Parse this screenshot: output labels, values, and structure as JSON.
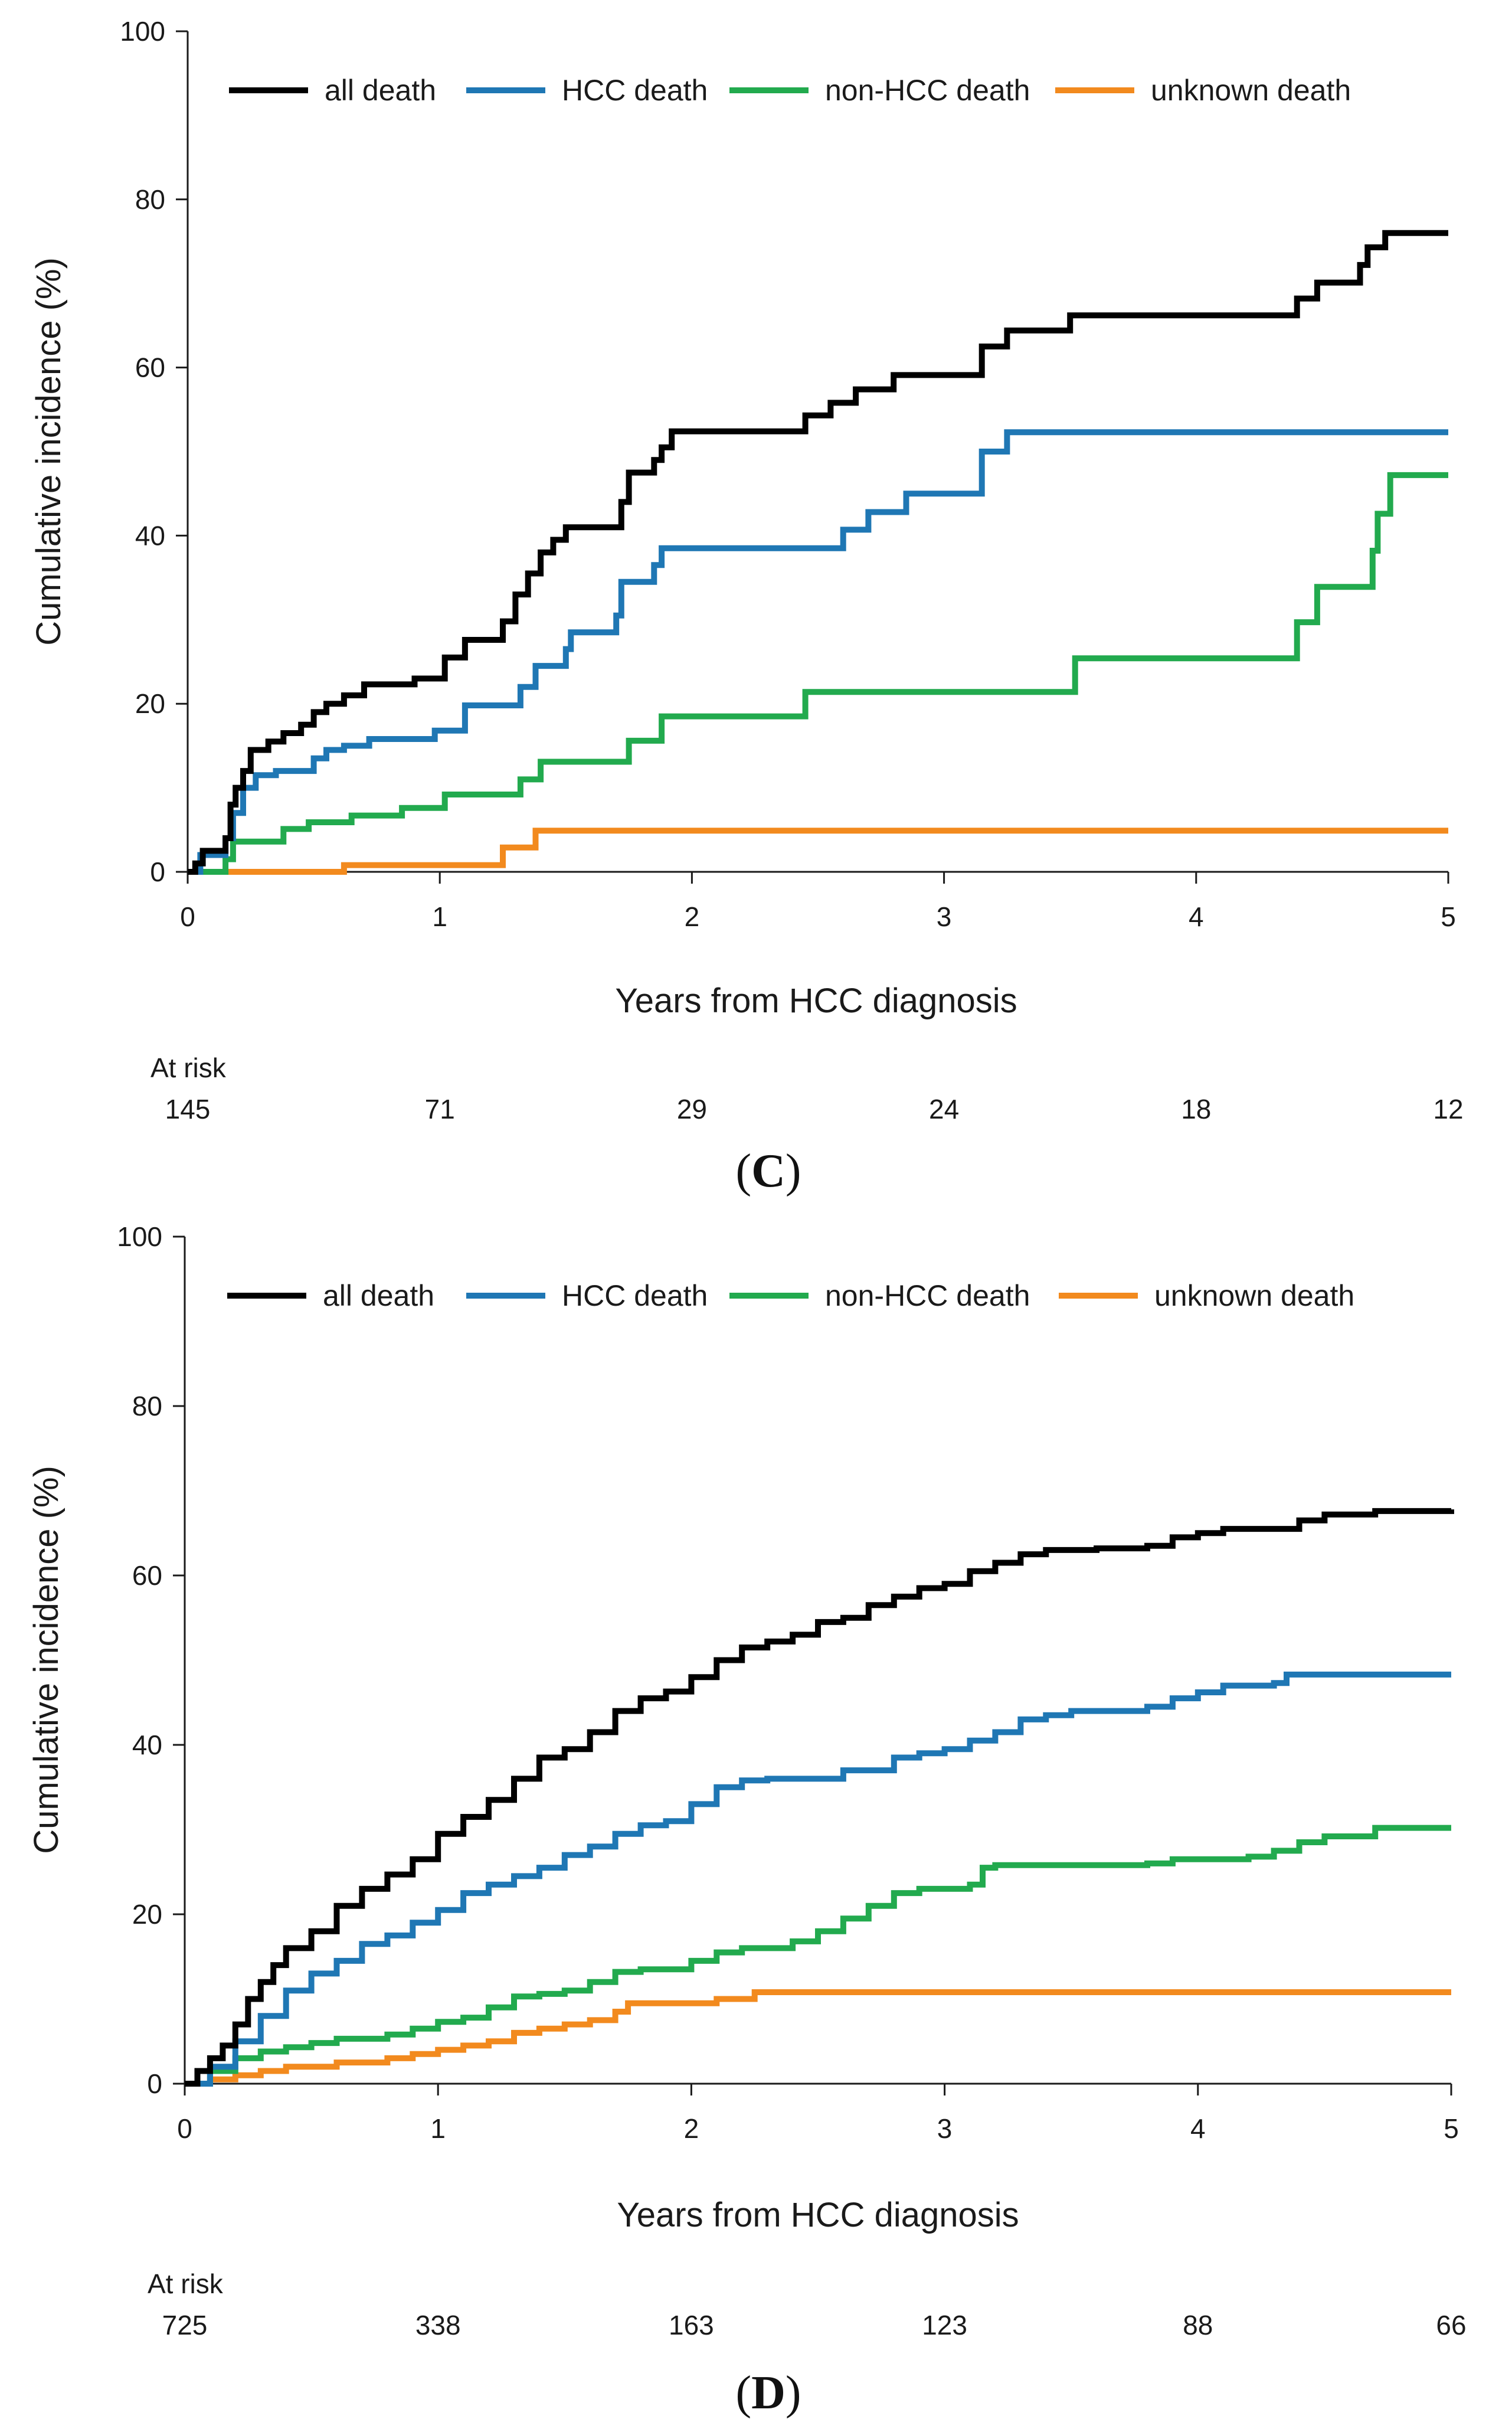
{
  "chart_data": [
    {
      "panel": "C",
      "type": "line",
      "step": true,
      "xlabel": "Years from HCC diagnosis",
      "ylabel": "Cumulative incidence (%)",
      "xlim": [
        0,
        5
      ],
      "ylim": [
        0,
        100
      ],
      "xticks": [
        "0",
        "1",
        "2",
        "3",
        "4",
        "5"
      ],
      "yticks": [
        "0",
        "20",
        "40",
        "60",
        "80",
        "100"
      ],
      "legend_position": "top",
      "at_risk_label": "At risk",
      "at_risk": [
        "145",
        "71",
        "29",
        "24",
        "18",
        "12"
      ],
      "series": [
        {
          "name": "all death",
          "color": "#000000",
          "points": [
            [
              0,
              0
            ],
            [
              0.03,
              1
            ],
            [
              0.06,
              2.5
            ],
            [
              0.15,
              4
            ],
            [
              0.17,
              8
            ],
            [
              0.19,
              10
            ],
            [
              0.22,
              12
            ],
            [
              0.25,
              14.5
            ],
            [
              0.32,
              15.5
            ],
            [
              0.38,
              16.5
            ],
            [
              0.45,
              17.5
            ],
            [
              0.5,
              19
            ],
            [
              0.55,
              20
            ],
            [
              0.62,
              21
            ],
            [
              0.7,
              22.3
            ],
            [
              0.9,
              23
            ],
            [
              1.02,
              25.5
            ],
            [
              1.1,
              27.6
            ],
            [
              1.25,
              29.8
            ],
            [
              1.3,
              33
            ],
            [
              1.35,
              35.5
            ],
            [
              1.4,
              38
            ],
            [
              1.45,
              39.5
            ],
            [
              1.5,
              41
            ],
            [
              1.72,
              44
            ],
            [
              1.75,
              47.5
            ],
            [
              1.85,
              49
            ],
            [
              1.88,
              50.5
            ],
            [
              1.92,
              52.4
            ],
            [
              2.45,
              54.3
            ],
            [
              2.55,
              55.8
            ],
            [
              2.65,
              57.4
            ],
            [
              2.8,
              59.1
            ],
            [
              3.15,
              62.5
            ],
            [
              3.25,
              64.4
            ],
            [
              3.5,
              66.2
            ],
            [
              4.4,
              68.2
            ],
            [
              4.48,
              70.1
            ],
            [
              4.65,
              72.2
            ],
            [
              4.68,
              74.3
            ],
            [
              4.75,
              76
            ],
            [
              5,
              76
            ]
          ]
        },
        {
          "name": "HCC death",
          "color": "#1F77B4",
          "points": [
            [
              0,
              0
            ],
            [
              0.05,
              2
            ],
            [
              0.15,
              4
            ],
            [
              0.18,
              7
            ],
            [
              0.22,
              10
            ],
            [
              0.27,
              11.5
            ],
            [
              0.35,
              12
            ],
            [
              0.5,
              13.5
            ],
            [
              0.55,
              14.5
            ],
            [
              0.62,
              15
            ],
            [
              0.72,
              15.8
            ],
            [
              0.98,
              16.8
            ],
            [
              1.1,
              19.8
            ],
            [
              1.32,
              22
            ],
            [
              1.38,
              24.5
            ],
            [
              1.5,
              26.5
            ],
            [
              1.52,
              28.5
            ],
            [
              1.7,
              30.5
            ],
            [
              1.72,
              34.5
            ],
            [
              1.85,
              36.5
            ],
            [
              1.88,
              38.5
            ],
            [
              2.6,
              40.7
            ],
            [
              2.7,
              42.8
            ],
            [
              2.85,
              45
            ],
            [
              3.15,
              50
            ],
            [
              3.25,
              52.3
            ],
            [
              5,
              52.3
            ]
          ]
        },
        {
          "name": "non-HCC death",
          "color": "#22AA4E",
          "points": [
            [
              0,
              0
            ],
            [
              0.15,
              1.5
            ],
            [
              0.18,
              3.6
            ],
            [
              0.38,
              5.1
            ],
            [
              0.48,
              5.9
            ],
            [
              0.65,
              6.7
            ],
            [
              0.85,
              7.6
            ],
            [
              1.02,
              9.2
            ],
            [
              1.32,
              11
            ],
            [
              1.4,
              13.1
            ],
            [
              1.75,
              15.6
            ],
            [
              1.88,
              18.5
            ],
            [
              2.45,
              21.4
            ],
            [
              3.52,
              25.4
            ],
            [
              4.4,
              29.7
            ],
            [
              4.48,
              33.9
            ],
            [
              4.7,
              38.2
            ],
            [
              4.72,
              42.6
            ],
            [
              4.77,
              47.2
            ],
            [
              5,
              47.2
            ]
          ]
        },
        {
          "name": "unknown death",
          "color": "#F28A1E",
          "points": [
            [
              0,
              0
            ],
            [
              0.62,
              0.8
            ],
            [
              1.25,
              2.9
            ],
            [
              1.38,
              4.9
            ],
            [
              5,
              4.9
            ]
          ]
        }
      ]
    },
    {
      "panel": "D",
      "type": "line",
      "step": true,
      "xlabel": "Years from HCC diagnosis",
      "ylabel": "Cumulative incidence (%)",
      "xlim": [
        0,
        5
      ],
      "ylim": [
        0,
        100
      ],
      "xticks": [
        "0",
        "1",
        "2",
        "3",
        "4",
        "5"
      ],
      "yticks": [
        "0",
        "20",
        "40",
        "60",
        "80",
        "100"
      ],
      "legend_position": "top",
      "at_risk_label": "At risk",
      "at_risk": [
        "725",
        "338",
        "163",
        "123",
        "88",
        "66"
      ],
      "series": [
        {
          "name": "all death",
          "color": "#000000",
          "points": [
            [
              0,
              0
            ],
            [
              0.05,
              1.5
            ],
            [
              0.1,
              3
            ],
            [
              0.15,
              4.5
            ],
            [
              0.2,
              7
            ],
            [
              0.25,
              10
            ],
            [
              0.3,
              12
            ],
            [
              0.35,
              14
            ],
            [
              0.4,
              16
            ],
            [
              0.5,
              18
            ],
            [
              0.6,
              21
            ],
            [
              0.7,
              23
            ],
            [
              0.8,
              24.7
            ],
            [
              0.9,
              26.5
            ],
            [
              1.0,
              29.5
            ],
            [
              1.1,
              31.5
            ],
            [
              1.2,
              33.5
            ],
            [
              1.3,
              36
            ],
            [
              1.4,
              38.5
            ],
            [
              1.5,
              39.5
            ],
            [
              1.6,
              41.5
            ],
            [
              1.7,
              44
            ],
            [
              1.8,
              45.5
            ],
            [
              1.9,
              46.3
            ],
            [
              2.0,
              48
            ],
            [
              2.1,
              50
            ],
            [
              2.2,
              51.5
            ],
            [
              2.3,
              52.2
            ],
            [
              2.4,
              53
            ],
            [
              2.5,
              54.5
            ],
            [
              2.6,
              55
            ],
            [
              2.7,
              56.5
            ],
            [
              2.8,
              57.5
            ],
            [
              2.9,
              58.5
            ],
            [
              3.0,
              59
            ],
            [
              3.1,
              60.5
            ],
            [
              3.2,
              61.5
            ],
            [
              3.3,
              62.5
            ],
            [
              3.4,
              63
            ],
            [
              3.6,
              63.2
            ],
            [
              3.8,
              63.5
            ],
            [
              3.9,
              64.5
            ],
            [
              4.0,
              65
            ],
            [
              4.1,
              65.5
            ],
            [
              4.3,
              65.5
            ],
            [
              4.4,
              66.5
            ],
            [
              4.5,
              67.2
            ],
            [
              4.7,
              67.6
            ],
            [
              5,
              67.8
            ]
          ]
        },
        {
          "name": "HCC death",
          "color": "#1F77B4",
          "points": [
            [
              0,
              0
            ],
            [
              0.1,
              2
            ],
            [
              0.2,
              5
            ],
            [
              0.3,
              8
            ],
            [
              0.4,
              11
            ],
            [
              0.5,
              13
            ],
            [
              0.6,
              14.5
            ],
            [
              0.7,
              16.5
            ],
            [
              0.8,
              17.5
            ],
            [
              0.9,
              19
            ],
            [
              1.0,
              20.5
            ],
            [
              1.1,
              22.5
            ],
            [
              1.2,
              23.5
            ],
            [
              1.3,
              24.5
            ],
            [
              1.4,
              25.5
            ],
            [
              1.5,
              27
            ],
            [
              1.6,
              28
            ],
            [
              1.7,
              29.5
            ],
            [
              1.8,
              30.5
            ],
            [
              1.9,
              31
            ],
            [
              2.0,
              33
            ],
            [
              2.1,
              35
            ],
            [
              2.2,
              35.8
            ],
            [
              2.3,
              36
            ],
            [
              2.6,
              37
            ],
            [
              2.8,
              38.5
            ],
            [
              2.9,
              39
            ],
            [
              3.0,
              39.5
            ],
            [
              3.1,
              40.5
            ],
            [
              3.2,
              41.5
            ],
            [
              3.3,
              43
            ],
            [
              3.4,
              43.5
            ],
            [
              3.5,
              44
            ],
            [
              3.8,
              44.5
            ],
            [
              3.9,
              45.5
            ],
            [
              4.0,
              46.2
            ],
            [
              4.1,
              47
            ],
            [
              4.3,
              47.3
            ],
            [
              4.35,
              48.3
            ],
            [
              5,
              48.3
            ]
          ]
        },
        {
          "name": "non-HCC death",
          "color": "#22AA4E",
          "points": [
            [
              0,
              0
            ],
            [
              0.1,
              1.5
            ],
            [
              0.2,
              3
            ],
            [
              0.3,
              3.8
            ],
            [
              0.4,
              4.3
            ],
            [
              0.5,
              4.8
            ],
            [
              0.6,
              5.3
            ],
            [
              0.8,
              5.8
            ],
            [
              0.9,
              6.5
            ],
            [
              1.0,
              7.3
            ],
            [
              1.1,
              7.8
            ],
            [
              1.2,
              9
            ],
            [
              1.3,
              10.3
            ],
            [
              1.4,
              10.6
            ],
            [
              1.5,
              11
            ],
            [
              1.6,
              12
            ],
            [
              1.7,
              13.2
            ],
            [
              1.8,
              13.5
            ],
            [
              2.0,
              14.5
            ],
            [
              2.1,
              15.5
            ],
            [
              2.2,
              16
            ],
            [
              2.4,
              16.8
            ],
            [
              2.5,
              18
            ],
            [
              2.6,
              19.5
            ],
            [
              2.7,
              21
            ],
            [
              2.8,
              22.5
            ],
            [
              2.9,
              23
            ],
            [
              3.1,
              23.5
            ],
            [
              3.15,
              25.5
            ],
            [
              3.2,
              25.8
            ],
            [
              3.8,
              26
            ],
            [
              3.9,
              26.5
            ],
            [
              4.2,
              26.8
            ],
            [
              4.3,
              27.5
            ],
            [
              4.4,
              28.5
            ],
            [
              4.5,
              29.2
            ],
            [
              4.7,
              30.2
            ],
            [
              5,
              30.2
            ]
          ]
        },
        {
          "name": "unknown death",
          "color": "#F28A1E",
          "points": [
            [
              0,
              0
            ],
            [
              0.1,
              0.5
            ],
            [
              0.2,
              1
            ],
            [
              0.3,
              1.5
            ],
            [
              0.4,
              2
            ],
            [
              0.6,
              2.5
            ],
            [
              0.8,
              3
            ],
            [
              0.9,
              3.5
            ],
            [
              1.0,
              4
            ],
            [
              1.1,
              4.5
            ],
            [
              1.2,
              5
            ],
            [
              1.3,
              6
            ],
            [
              1.4,
              6.5
            ],
            [
              1.5,
              7
            ],
            [
              1.6,
              7.5
            ],
            [
              1.7,
              8.5
            ],
            [
              1.75,
              9.5
            ],
            [
              1.9,
              9.5
            ],
            [
              2.1,
              10
            ],
            [
              2.25,
              10.8
            ],
            [
              5,
              10.8
            ]
          ]
        }
      ]
    }
  ]
}
